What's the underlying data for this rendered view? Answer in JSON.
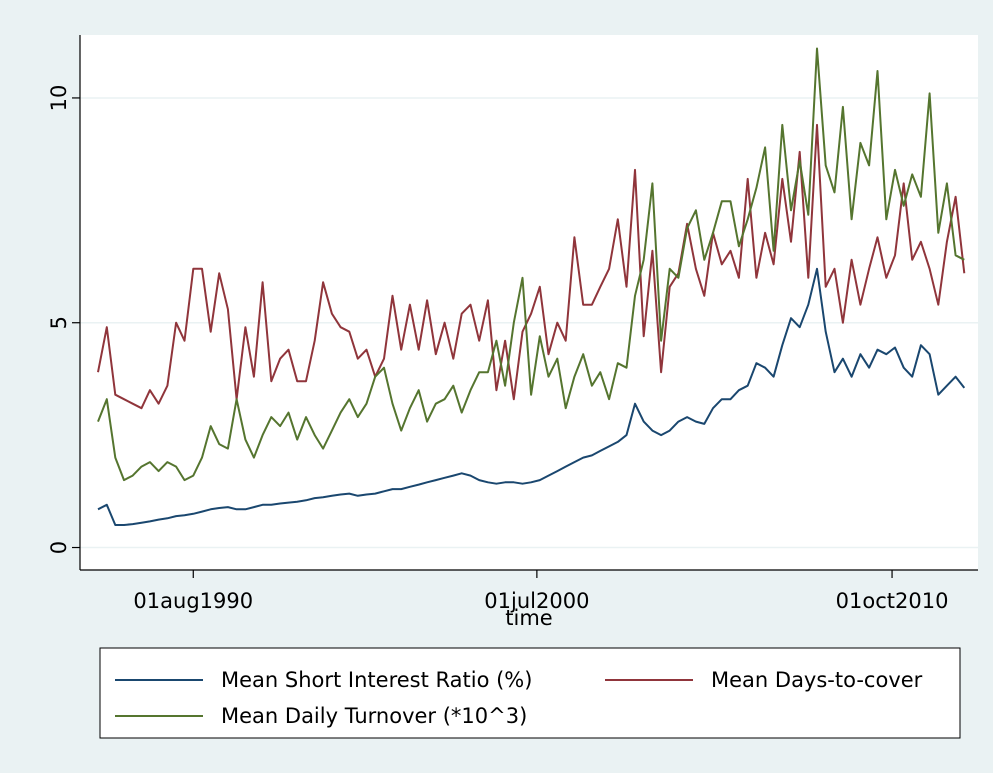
{
  "chart_data": {
    "type": "line",
    "x_label": "time",
    "legend": "bottom",
    "grid": true,
    "x": [
      "1987-11-01",
      "1988-02-01",
      "1988-05-01",
      "1988-08-01",
      "1988-11-01",
      "1989-02-01",
      "1989-05-01",
      "1989-08-01",
      "1989-11-01",
      "1990-02-01",
      "1990-05-01",
      "1990-08-01",
      "1990-11-01",
      "1991-02-01",
      "1991-05-01",
      "1991-08-01",
      "1991-11-01",
      "1992-02-01",
      "1992-05-01",
      "1992-08-01",
      "1992-11-01",
      "1993-02-01",
      "1993-05-01",
      "1993-08-01",
      "1993-11-01",
      "1994-02-01",
      "1994-05-01",
      "1994-08-01",
      "1994-11-01",
      "1995-02-01",
      "1995-05-01",
      "1995-08-01",
      "1995-11-01",
      "1996-02-01",
      "1996-05-01",
      "1996-08-01",
      "1996-11-01",
      "1997-02-01",
      "1997-05-01",
      "1997-08-01",
      "1997-11-01",
      "1998-02-01",
      "1998-05-01",
      "1998-08-01",
      "1998-11-01",
      "1999-02-01",
      "1999-05-01",
      "1999-08-01",
      "1999-11-01",
      "2000-02-01",
      "2000-05-01",
      "2000-08-01",
      "2000-11-01",
      "2001-02-01",
      "2001-05-01",
      "2001-08-01",
      "2001-11-01",
      "2002-02-01",
      "2002-05-01",
      "2002-08-01",
      "2002-11-01",
      "2003-02-01",
      "2003-05-01",
      "2003-08-01",
      "2003-11-01",
      "2004-02-01",
      "2004-05-01",
      "2004-08-01",
      "2004-11-01",
      "2005-02-01",
      "2005-05-01",
      "2005-08-01",
      "2005-11-01",
      "2006-02-01",
      "2006-05-01",
      "2006-08-01",
      "2006-11-01",
      "2007-02-01",
      "2007-05-01",
      "2007-08-01",
      "2007-11-01",
      "2008-02-01",
      "2008-05-01",
      "2008-08-01",
      "2008-11-01",
      "2009-02-01",
      "2009-05-01",
      "2009-08-01",
      "2009-11-01",
      "2010-02-01",
      "2010-05-01",
      "2010-08-01",
      "2010-11-01",
      "2011-02-01",
      "2011-05-01",
      "2011-08-01",
      "2011-11-01",
      "2012-02-01",
      "2012-05-01",
      "2012-08-01",
      "2012-11-01"
    ],
    "series": [
      {
        "name": "Mean Short Interest Ratio (%)",
        "color": "#1a476f",
        "values": [
          0.85,
          0.95,
          0.5,
          0.5,
          0.52,
          0.55,
          0.58,
          0.62,
          0.65,
          0.7,
          0.72,
          0.75,
          0.8,
          0.85,
          0.88,
          0.9,
          0.85,
          0.85,
          0.9,
          0.95,
          0.95,
          0.98,
          1.0,
          1.02,
          1.05,
          1.1,
          1.12,
          1.15,
          1.18,
          1.2,
          1.15,
          1.18,
          1.2,
          1.25,
          1.3,
          1.3,
          1.35,
          1.4,
          1.45,
          1.5,
          1.55,
          1.6,
          1.65,
          1.6,
          1.5,
          1.45,
          1.42,
          1.45,
          1.45,
          1.42,
          1.45,
          1.5,
          1.6,
          1.7,
          1.8,
          1.9,
          2.0,
          2.05,
          2.15,
          2.25,
          2.35,
          2.5,
          3.2,
          2.8,
          2.6,
          2.5,
          2.6,
          2.8,
          2.9,
          2.8,
          2.75,
          3.1,
          3.3,
          3.3,
          3.5,
          3.6,
          4.1,
          4.0,
          3.8,
          4.5,
          5.1,
          4.9,
          5.4,
          6.2,
          4.8,
          3.9,
          4.2,
          3.8,
          4.3,
          4.0,
          4.4,
          4.3,
          4.45,
          4.0,
          3.8,
          4.5,
          4.3,
          3.4,
          3.6,
          3.8,
          3.55
        ]
      },
      {
        "name": "Mean Days-to-cover",
        "color": "#90353b",
        "values": [
          3.9,
          4.9,
          3.4,
          3.3,
          3.2,
          3.1,
          3.5,
          3.2,
          3.6,
          5.0,
          4.6,
          6.2,
          6.2,
          4.8,
          6.1,
          5.3,
          3.3,
          4.9,
          3.8,
          5.9,
          3.7,
          4.2,
          4.4,
          3.7,
          3.7,
          4.6,
          5.9,
          5.2,
          4.9,
          4.8,
          4.2,
          4.4,
          3.8,
          4.2,
          5.6,
          4.4,
          5.4,
          4.4,
          5.5,
          4.3,
          5.0,
          4.2,
          5.2,
          5.4,
          4.6,
          5.5,
          3.5,
          4.6,
          3.3,
          4.8,
          5.2,
          5.8,
          4.3,
          5.0,
          4.6,
          6.9,
          5.4,
          5.4,
          5.8,
          6.2,
          7.3,
          5.8,
          8.4,
          4.7,
          6.6,
          3.9,
          5.8,
          6.1,
          7.2,
          6.2,
          5.6,
          7.0,
          6.3,
          6.6,
          6.0,
          8.2,
          6.0,
          7.0,
          6.3,
          8.2,
          6.8,
          8.8,
          6.0,
          9.4,
          5.8,
          6.2,
          5.0,
          6.4,
          5.4,
          6.2,
          6.9,
          6.0,
          6.5,
          8.1,
          6.4,
          6.8,
          6.2,
          5.4,
          6.8,
          7.8,
          6.1
        ]
      },
      {
        "name": "Mean Daily Turnover (*10^3)",
        "color": "#55752f",
        "values": [
          2.8,
          3.3,
          2.0,
          1.5,
          1.6,
          1.8,
          1.9,
          1.7,
          1.9,
          1.8,
          1.5,
          1.6,
          2.0,
          2.7,
          2.3,
          2.2,
          3.3,
          2.4,
          2.0,
          2.5,
          2.9,
          2.7,
          3.0,
          2.4,
          2.9,
          2.5,
          2.2,
          2.6,
          3.0,
          3.3,
          2.9,
          3.2,
          3.8,
          4.0,
          3.2,
          2.6,
          3.1,
          3.5,
          2.8,
          3.2,
          3.3,
          3.6,
          3.0,
          3.5,
          3.9,
          3.9,
          4.6,
          3.6,
          5.0,
          6.0,
          3.4,
          4.7,
          3.8,
          4.2,
          3.1,
          3.8,
          4.3,
          3.6,
          3.9,
          3.3,
          4.1,
          4.0,
          5.6,
          6.4,
          8.1,
          4.6,
          6.2,
          6.0,
          7.1,
          7.5,
          6.4,
          7.0,
          7.7,
          7.7,
          6.7,
          7.3,
          8.0,
          8.9,
          6.6,
          9.4,
          7.5,
          8.6,
          7.4,
          11.1,
          8.5,
          7.9,
          9.8,
          7.3,
          9.0,
          8.5,
          10.6,
          7.3,
          8.4,
          7.6,
          8.3,
          7.8,
          10.1,
          7.0,
          8.1,
          6.5,
          6.4
        ]
      }
    ],
    "xlim": [
      "1987-04-25",
      "2013-03-25"
    ],
    "xticks": [
      {
        "value": "1990-08-01",
        "label": "01aug1990"
      },
      {
        "value": "2000-07-01",
        "label": "01jul2000"
      },
      {
        "value": "2010-10-01",
        "label": "01oct2010"
      }
    ],
    "ylim": [
      -0.5,
      11.4
    ],
    "yticks": [
      0,
      5,
      10
    ]
  }
}
